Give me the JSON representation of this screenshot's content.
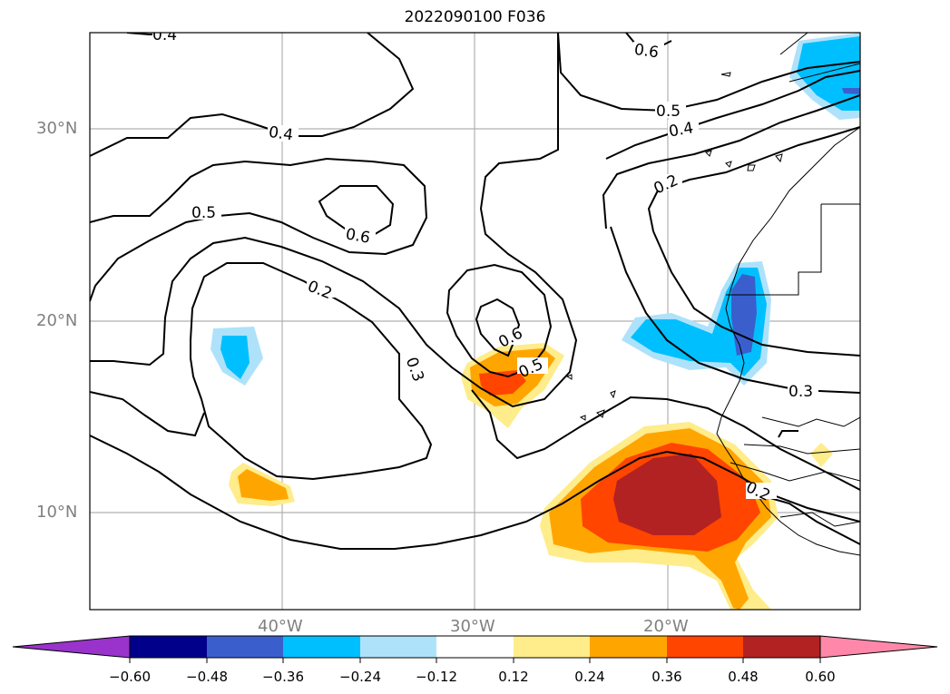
{
  "title": "2022090100 F036",
  "lat_labels": [
    "30°N",
    "20°N",
    "10°N"
  ],
  "lon_labels": [
    "40°W",
    "30°W",
    "20°W"
  ],
  "contour_labels": [
    "0.4",
    "0.4",
    "0.5",
    "0.6",
    "0.2",
    "0.3",
    "0.6",
    "0.5",
    "0.6",
    "0.5",
    "0.4",
    "0.2",
    "0.3",
    "0.2"
  ],
  "colorbar": {
    "ticks": [
      "−0.60",
      "−0.48",
      "−0.36",
      "−0.24",
      "−0.12",
      "0.12",
      "0.24",
      "0.36",
      "0.48",
      "0.60"
    ],
    "colors": [
      "#9933cc",
      "#00008b",
      "#3a5fcd",
      "#00bfff",
      "#aee2fa",
      "#ffffff",
      "#ffec8b",
      "#ffa500",
      "#ff4500",
      "#b22222",
      "#ff88aa"
    ],
    "extend": "both"
  }
}
